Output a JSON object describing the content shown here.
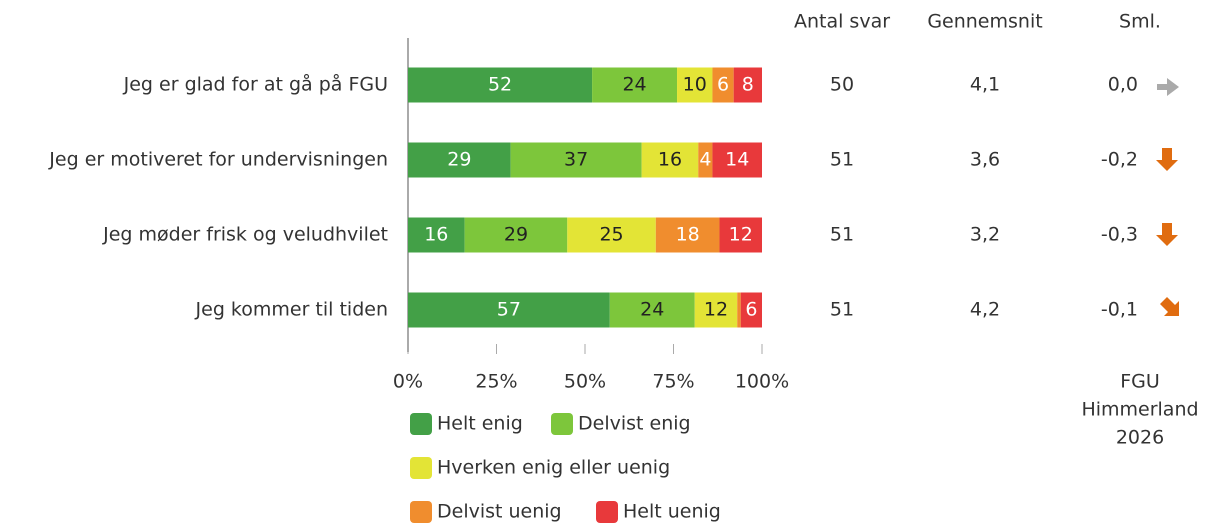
{
  "chart_data": {
    "type": "stacked-bar-horizontal",
    "categories": [
      "Jeg er glad for at gå på FGU",
      "Jeg er motiveret for undervisningen",
      "Jeg møder frisk og veludhvilet",
      "Jeg kommer til tiden"
    ],
    "series": [
      {
        "name": "Helt enig",
        "color": "#43a047",
        "label_color": "#ffffff",
        "values": [
          52,
          29,
          16,
          57
        ]
      },
      {
        "name": "Delvist enig",
        "color": "#7dc63b",
        "label_color": "#222222",
        "values": [
          24,
          37,
          29,
          24
        ]
      },
      {
        "name": "Hverken enig eller uenig",
        "color": "#e3e436",
        "label_color": "#222222",
        "values": [
          10,
          16,
          25,
          12
        ]
      },
      {
        "name": "Delvist uenig",
        "color": "#f08d2e",
        "label_color": "#ffffff",
        "values": [
          6,
          4,
          18,
          1
        ],
        "value_labels": [
          "6",
          "4",
          "18",
          null
        ]
      },
      {
        "name": "Helt uenig",
        "color": "#e8393b",
        "label_color": "#ffffff",
        "values": [
          8,
          14,
          12,
          6
        ]
      }
    ],
    "xlim": [
      0,
      100
    ],
    "xticks": [
      {
        "value": 0,
        "label": "0%"
      },
      {
        "value": 25,
        "label": "25%"
      },
      {
        "value": 50,
        "label": "50%"
      },
      {
        "value": 75,
        "label": "75%"
      },
      {
        "value": 100,
        "label": "100%"
      }
    ],
    "table": {
      "columns": [
        "Antal svar",
        "Gennemsnit",
        "Sml."
      ],
      "antal": [
        50,
        51,
        51,
        51
      ],
      "gennemsnit": [
        {
          "value": 4.1,
          "label": "4,1"
        },
        {
          "value": 3.6,
          "label": "3,6"
        },
        {
          "value": 3.2,
          "label": "3,2"
        },
        {
          "value": 4.2,
          "label": "4,2"
        }
      ],
      "sml": [
        {
          "value": 0.0,
          "label": "0,0"
        },
        {
          "value": -0.2,
          "label": "-0,2"
        },
        {
          "value": -0.3,
          "label": "-0,3"
        },
        {
          "value": -0.1,
          "label": "-0,1"
        }
      ]
    },
    "footnote": [
      "FGU",
      "Himmerland",
      "2026"
    ]
  }
}
